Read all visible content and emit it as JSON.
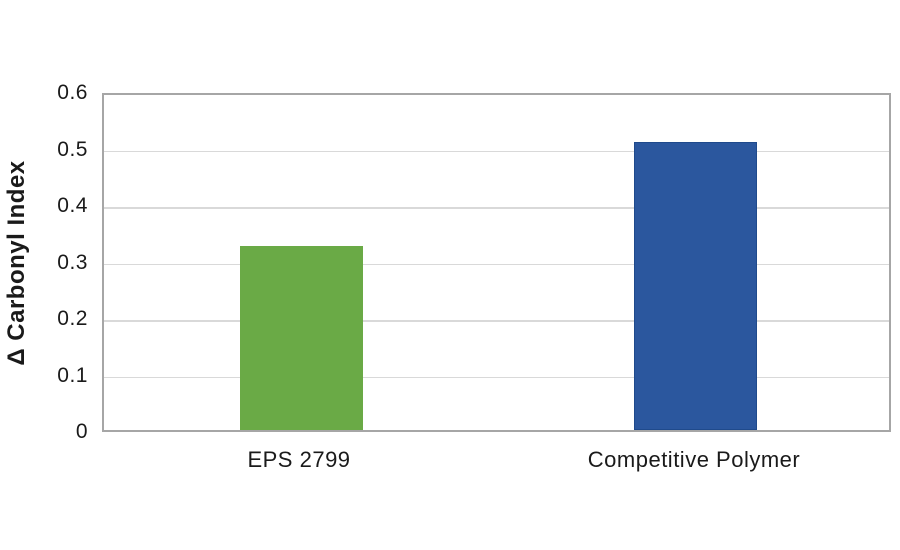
{
  "chart_data": {
    "type": "bar",
    "categories": [
      "EPS 2799",
      "Competitive Polymer"
    ],
    "values": [
      0.325,
      0.51
    ],
    "title": "",
    "xlabel": "",
    "ylabel": "Δ Carbonyl Index",
    "ylim": [
      0,
      0.6
    ],
    "ytick_step": 0.1,
    "ytick_labels": [
      "0",
      "0.1",
      "0.2",
      "0.3",
      "0.4",
      "0.5",
      "0.6"
    ],
    "grid": true,
    "legend": false,
    "bar_colors": [
      "#6AAA46",
      "#2B579E"
    ],
    "bar_border_colors": [
      "#6AAA46",
      "#1F4A8C"
    ],
    "plot_border_color": "#A6A6A6",
    "gridline_color": "#D9D9D9",
    "text_color": "#1A1A1A",
    "background": "#FFFFFF"
  }
}
